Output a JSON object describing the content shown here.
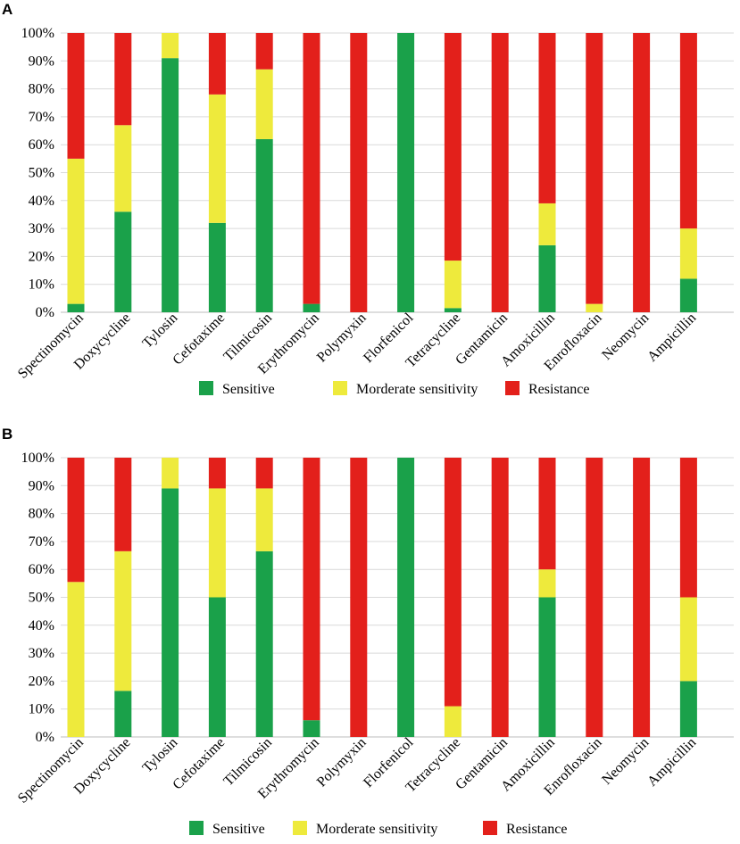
{
  "chart_data": [
    {
      "panel": "A",
      "type": "bar",
      "stacked": true,
      "categories": [
        "Spectinomycin",
        "Doxycycline",
        "Tylosin",
        "Cefotaxime",
        "Tilmicosin",
        "Erythromycin",
        "Polymyxin",
        "Florfenicol",
        "Tetracycline",
        "Gentamicin",
        "Amoxicillin",
        "Enrofloxacin",
        "Neomycin",
        "Ampicillin"
      ],
      "series": [
        {
          "name": "Sensitive",
          "color": "#1aa14a",
          "values": [
            3,
            36,
            91,
            32,
            62,
            3,
            0,
            100,
            1.5,
            0,
            24,
            0,
            0,
            12
          ]
        },
        {
          "name": "Morderate sensitivity",
          "color": "#eeea3c",
          "values": [
            52,
            31,
            9,
            46,
            25,
            0,
            0,
            0,
            17,
            0,
            15,
            3,
            0,
            18
          ]
        },
        {
          "name": "Resistance",
          "color": "#e3201b",
          "values": [
            45,
            33,
            0,
            22,
            13,
            97,
            100,
            0,
            81.5,
            100,
            61,
            97,
            100,
            70
          ]
        }
      ],
      "ylim": [
        0,
        100
      ],
      "yticks": [
        "0%",
        "10%",
        "20%",
        "30%",
        "40%",
        "50%",
        "60%",
        "70%",
        "80%",
        "90%",
        "100%"
      ],
      "legend": "bottom",
      "grid": true
    },
    {
      "panel": "B",
      "type": "bar",
      "stacked": true,
      "categories": [
        "Spectinomycin",
        "Doxycycline",
        "Tylosin",
        "Cefotaxime",
        "Tilmicosin",
        "Erythromycin",
        "Polymyxin",
        "Florfenicol",
        "Tetracycline",
        "Gentamicin",
        "Amoxicillin",
        "Enrofloxacin",
        "Neomycin",
        "Ampicillin"
      ],
      "series": [
        {
          "name": "Sensitive",
          "color": "#1aa14a",
          "values": [
            0,
            16.5,
            89,
            50,
            66.5,
            6,
            0,
            100,
            0,
            0,
            50,
            0,
            0,
            20
          ]
        },
        {
          "name": "Morderate sensitivity",
          "color": "#eeea3c",
          "values": [
            55.5,
            50,
            11,
            39,
            22.5,
            0,
            0,
            0,
            11,
            0,
            10,
            0,
            0,
            30
          ]
        },
        {
          "name": "Resistance",
          "color": "#e3201b",
          "values": [
            44.5,
            33.5,
            0,
            11,
            11,
            94,
            100,
            0,
            89,
            100,
            40,
            100,
            100,
            50
          ]
        }
      ],
      "ylim": [
        0,
        100
      ],
      "yticks": [
        "0%",
        "10%",
        "20%",
        "30%",
        "40%",
        "50%",
        "60%",
        "70%",
        "80%",
        "90%",
        "100%"
      ],
      "legend": "bottom",
      "grid": true
    }
  ]
}
